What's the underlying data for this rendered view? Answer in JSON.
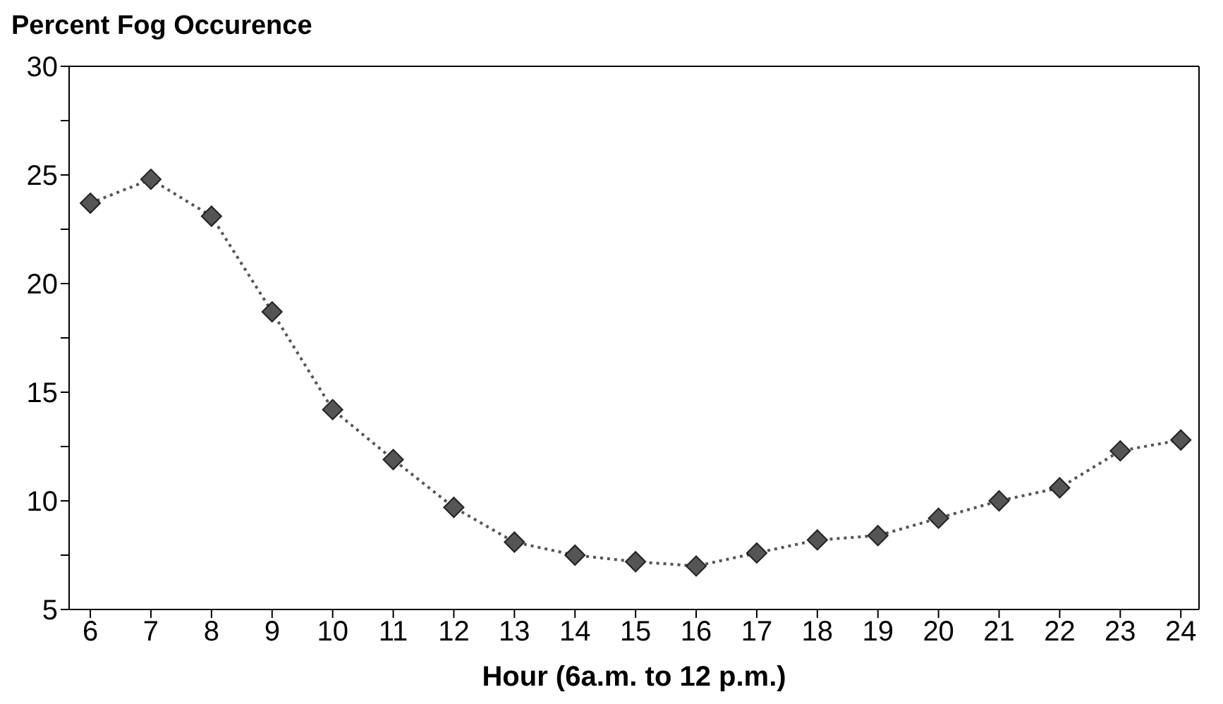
{
  "chart_data": {
    "type": "line",
    "title": "Percent Fog Occurence",
    "xlabel": "Hour (6a.m. to 12 p.m.)",
    "x": [
      6,
      7,
      8,
      9,
      10,
      11,
      12,
      13,
      14,
      15,
      16,
      17,
      18,
      19,
      20,
      21,
      22,
      23,
      24
    ],
    "series": [
      {
        "color": "#555555",
        "values": [
          23.7,
          24.8,
          23.1,
          18.7,
          14.2,
          11.9,
          9.7,
          8.1,
          7.5,
          7.2,
          7.0,
          7.6,
          8.2,
          8.4,
          9.2,
          10.0,
          10.6,
          12.3,
          12.8
        ]
      }
    ],
    "xlim": [
      5.65,
      24.3
    ],
    "xticks": [
      6,
      7,
      8,
      9,
      10,
      11,
      12,
      13,
      14,
      15,
      16,
      17,
      18,
      19,
      20,
      21,
      22,
      23,
      24
    ],
    "ylim": [
      5,
      30
    ],
    "yticks": [
      5,
      {
        "value": 7.5,
        "label": null
      },
      10,
      {
        "value": 12.5,
        "label": null
      },
      15,
      {
        "value": 17.5,
        "label": null
      },
      20,
      {
        "value": 22.5,
        "label": null
      },
      25,
      {
        "value": 27.5,
        "label": null
      },
      30
    ],
    "grid": false,
    "marker": "diamond",
    "line_style": "dotted"
  }
}
